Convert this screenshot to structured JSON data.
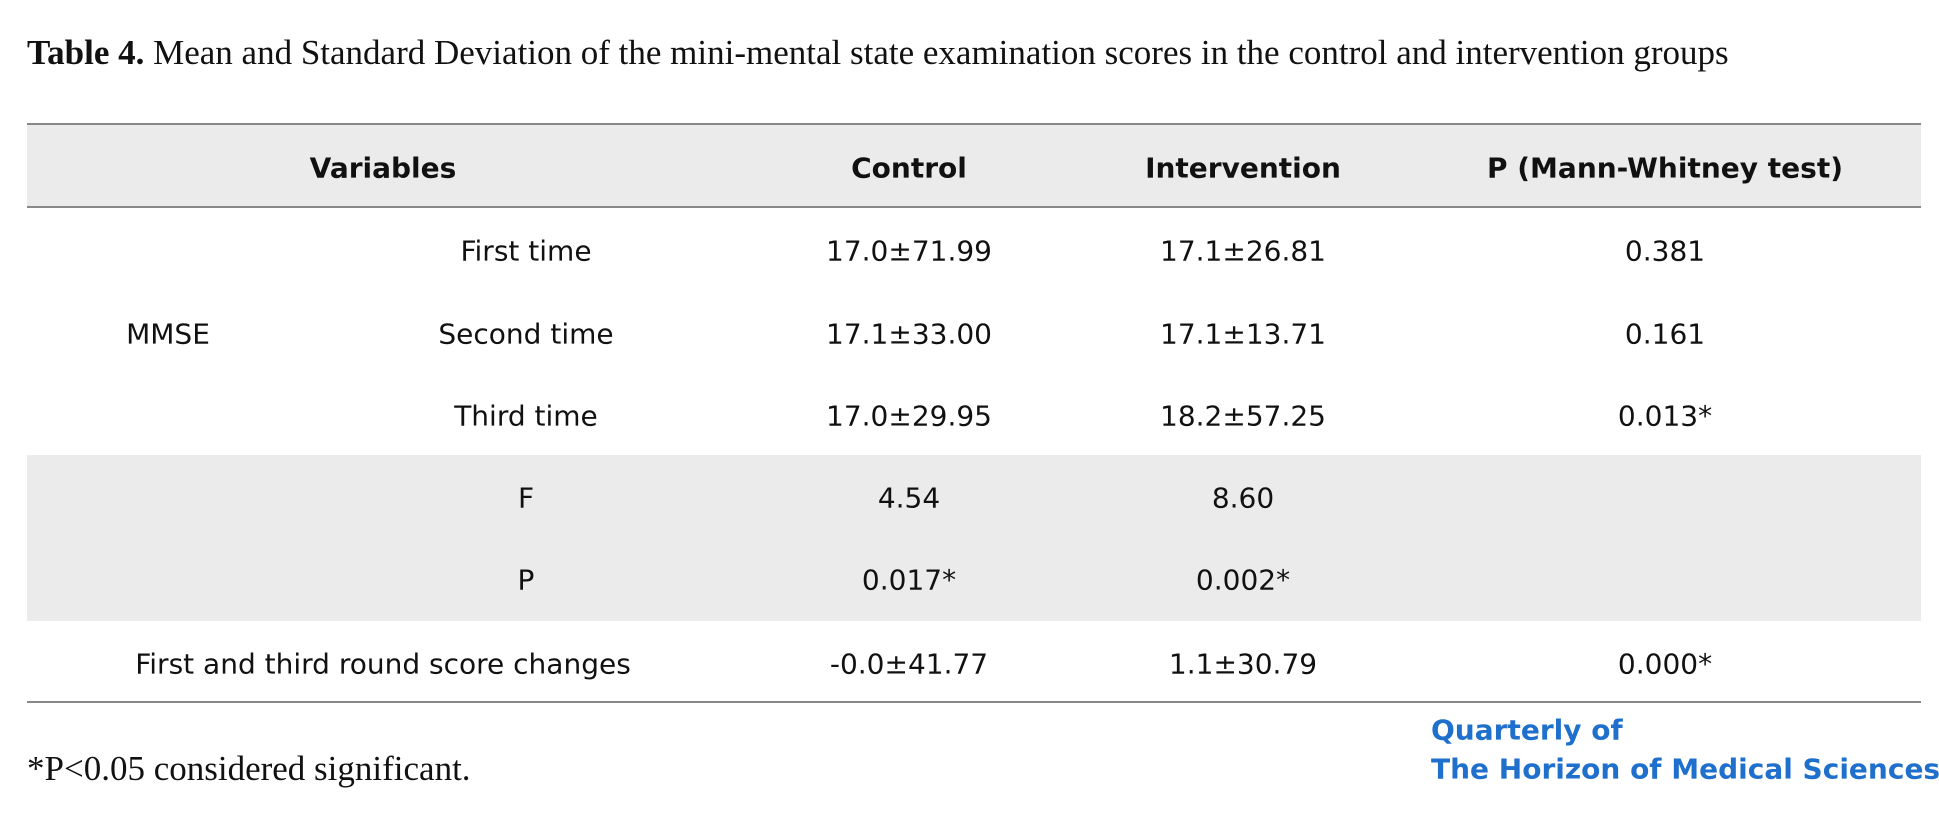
{
  "title": {
    "label": "Table 4.",
    "text": "Mean and Standard Deviation of the mini-mental state examination scores in the control and intervention groups"
  },
  "table": {
    "header": [
      "Variables",
      "Control",
      "Intervention",
      "P (Mann-Whitney test)"
    ],
    "group": "MMSE",
    "rows": [
      [
        "First time",
        "17.0±71.99",
        "17.1±26.81",
        "0.381"
      ],
      [
        "Second time",
        "17.1±33.00",
        "17.1±13.71",
        "0.161"
      ],
      [
        "Third time",
        "17.0±29.95",
        "18.2±57.25",
        "0.013*"
      ]
    ],
    "stats": [
      [
        "F",
        "4.54",
        "8.60"
      ],
      [
        "P",
        "0.017*",
        "0.002*"
      ]
    ],
    "change": [
      "First and third round score changes",
      "-0.0±41.77",
      "1.1±30.79",
      "0.000*"
    ]
  },
  "footnote": "*P<0.05 considered significant.",
  "logo": [
    "Quarterly of",
    "The Horizon of Medical Sciences"
  ]
}
